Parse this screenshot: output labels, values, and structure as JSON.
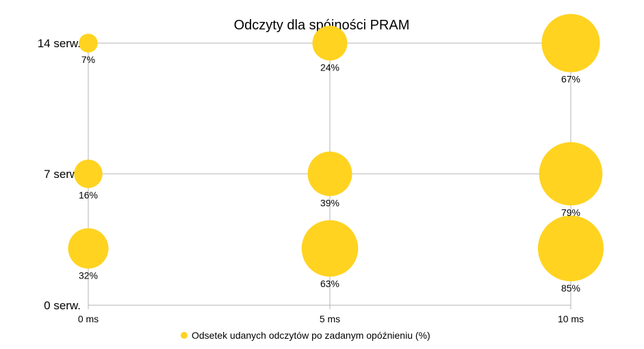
{
  "chart_data": {
    "type": "bubble",
    "title": "Odczyty dla spójności PRAM",
    "x_categories": [
      "0 ms",
      "5 ms",
      "10 ms"
    ],
    "y_categories": [
      "0 serw.",
      "7 serw.",
      "14 serw."
    ],
    "grid": true,
    "legend_position": "bottom",
    "bubble_color": "#ffd320",
    "series": [
      {
        "name": "Odsetek udanych odczytów po zadanym opóźnieniu (%)",
        "points": [
          {
            "x": "0 ms",
            "y": "14 serw.",
            "value": 7,
            "label": "7%"
          },
          {
            "x": "5 ms",
            "y": "14 serw.",
            "value": 24,
            "label": "24%"
          },
          {
            "x": "10 ms",
            "y": "14 serw.",
            "value": 67,
            "label": "67%"
          },
          {
            "x": "0 ms",
            "y": "7 serw.",
            "value": 16,
            "label": "16%"
          },
          {
            "x": "5 ms",
            "y": "7 serw.",
            "value": 39,
            "label": "39%"
          },
          {
            "x": "10 ms",
            "y": "7 serw.",
            "value": 79,
            "label": "79%"
          },
          {
            "x": "0 ms",
            "y": "0 serw.",
            "value": 32,
            "label": "32%"
          },
          {
            "x": "5 ms",
            "y": "0 serw.",
            "value": 63,
            "label": "63%"
          },
          {
            "x": "10 ms",
            "y": "0 serw.",
            "value": 85,
            "label": "85%"
          }
        ]
      }
    ]
  }
}
